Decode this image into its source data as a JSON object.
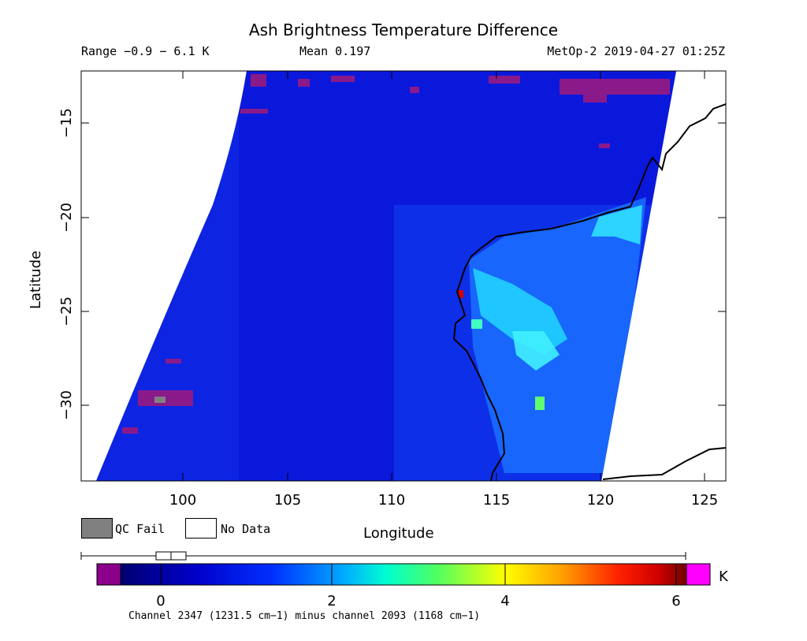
{
  "header": {
    "title": "Ash Brightness Temperature Difference",
    "range": "Range −0.9 − 6.1 K",
    "mean": "Mean 0.197",
    "satellite_time": "MetOp-2 2019-04-27 01:25Z"
  },
  "axes": {
    "xlabel": "Longitude",
    "ylabel": "Latitude",
    "x_ticks": [
      "100",
      "105",
      "110",
      "115",
      "120",
      "125"
    ],
    "y_ticks": [
      "−15",
      "−20",
      "−25",
      "−30"
    ]
  },
  "legend": {
    "qc_fail_label": "QC Fail",
    "no_data_label": "No Data",
    "qc_fail_color": "#808080",
    "no_data_color": "#ffffff"
  },
  "colorbar": {
    "unit": "K",
    "ticks": [
      "0",
      "2",
      "4",
      "6"
    ],
    "under_color": "#8a008a",
    "over_color": "#ff00ff",
    "caption": "Channel 2347 (1231.5 cm−1) minus channel 2093 (1168 cm−1)"
  },
  "map": {
    "lon_range": [
      95.3,
      126.4
    ],
    "lat_range": [
      -34.4,
      -12.6
    ]
  }
}
